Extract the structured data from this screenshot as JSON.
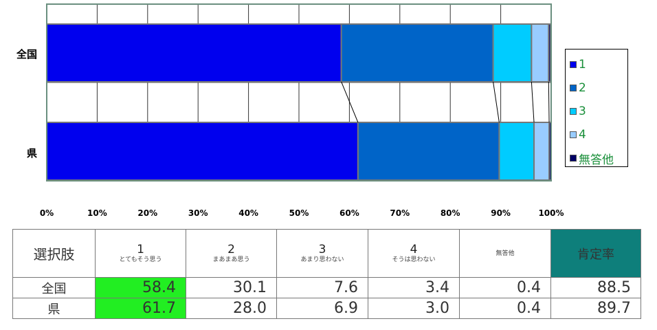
{
  "chart_data": {
    "type": "bar",
    "orientation": "horizontal",
    "stacked": true,
    "normalized": true,
    "categories": [
      "全国",
      "県"
    ],
    "series": [
      {
        "name": "1",
        "values": [
          58.4,
          61.7
        ],
        "color": "#0000ee"
      },
      {
        "name": "2",
        "values": [
          30.1,
          28.0
        ],
        "color": "#0064c8"
      },
      {
        "name": "3",
        "values": [
          7.6,
          6.9
        ],
        "color": "#00ccff"
      },
      {
        "name": "4",
        "values": [
          3.4,
          3.0
        ],
        "color": "#99ccff"
      },
      {
        "name": "無答他",
        "values": [
          0.4,
          0.4
        ],
        "color": "#000066"
      }
    ],
    "xlim": [
      0,
      100
    ],
    "xticks": [
      "0%",
      "10%",
      "20%",
      "30%",
      "40%",
      "50%",
      "60%",
      "70%",
      "80%",
      "90%",
      "100%"
    ],
    "grid": true,
    "legend": "right",
    "series_lines": true
  },
  "table": {
    "corner_label": "選択肢",
    "columns": [
      {
        "num": "1",
        "desc": "とてもそう思う"
      },
      {
        "num": "2",
        "desc": "まあまあ思う"
      },
      {
        "num": "3",
        "desc": "あまり思わない"
      },
      {
        "num": "4",
        "desc": "そうは思わない"
      },
      {
        "num": "",
        "desc": "無答他"
      }
    ],
    "rate_label": "肯定率",
    "rows": [
      {
        "label": "全国",
        "values": [
          "58.4",
          "30.1",
          "7.6",
          "3.4",
          "0.4"
        ],
        "rate": "88.5"
      },
      {
        "label": "県",
        "values": [
          "61.7",
          "28.0",
          "6.9",
          "3.0",
          "0.4"
        ],
        "rate": "89.7"
      }
    ]
  }
}
